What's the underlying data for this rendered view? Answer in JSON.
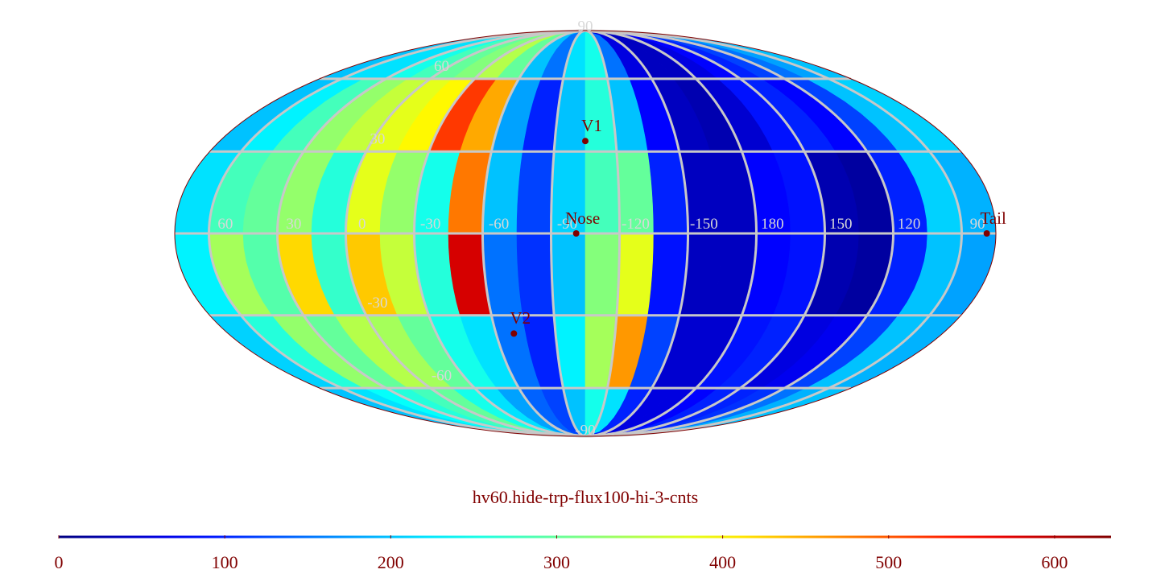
{
  "chart_data": {
    "type": "mollweide-heatmap",
    "title": "hv60.hide-trp-flux100-hi-3-cnts",
    "center_longitude": -105,
    "colormap": "jet",
    "grid_color": "#c8c8c8",
    "label_color": "#800000",
    "lon_lines": [
      60,
      30,
      0,
      -30,
      -60,
      -90,
      -120,
      -150,
      180,
      150,
      120,
      90
    ],
    "lat_lines": [
      60,
      30,
      -30,
      -60
    ],
    "poles": [
      90,
      -90
    ],
    "cells": {
      "lon_centers": [
        67.5,
        52.5,
        37.5,
        22.5,
        7.5,
        -7.5,
        -22.5,
        -37.5,
        -52.5,
        -67.5,
        -82.5,
        -97.5,
        -112.5,
        -127.5,
        -142.5,
        -157.5,
        -172.5,
        172.5,
        157.5,
        142.5,
        127.5,
        112.5,
        97.5,
        82.5
      ],
      "lat_centers": [
        75,
        45,
        15,
        -15,
        -45,
        -75
      ],
      "size": [
        15,
        30
      ],
      "values": [
        [
          200,
          220,
          220,
          250,
          280,
          300,
          320,
          350,
          300,
          200,
          150,
          220,
          250,
          150,
          60,
          40,
          40,
          60,
          80,
          100,
          120,
          150,
          180,
          200
        ],
        [
          200,
          230,
          280,
          330,
          360,
          380,
          400,
          520,
          450,
          180,
          100,
          200,
          260,
          200,
          80,
          40,
          30,
          50,
          90,
          100,
          80,
          120,
          200,
          210
        ],
        [
          220,
          280,
          300,
          330,
          260,
          380,
          330,
          250,
          480,
          200,
          120,
          210,
          280,
          300,
          100,
          40,
          40,
          80,
          90,
          30,
          20,
          100,
          210,
          190
        ],
        [
          230,
          340,
          290,
          420,
          270,
          430,
          360,
          260,
          580,
          150,
          110,
          200,
          320,
          380,
          90,
          40,
          40,
          80,
          90,
          30,
          20,
          100,
          200,
          180
        ],
        [
          210,
          260,
          330,
          300,
          350,
          340,
          300,
          250,
          220,
          150,
          100,
          230,
          340,
          460,
          120,
          50,
          50,
          90,
          100,
          60,
          70,
          120,
          200,
          190
        ],
        [
          200,
          220,
          240,
          260,
          280,
          300,
          250,
          220,
          180,
          140,
          120,
          200,
          250,
          220,
          100,
          60,
          60,
          80,
          100,
          100,
          110,
          150,
          190,
          200
        ]
      ]
    },
    "points": [
      {
        "name": "V1",
        "lon": -105,
        "lat": 34
      },
      {
        "name": "Nose",
        "lon": -101,
        "lat": 0
      },
      {
        "name": "V2",
        "lon": -69,
        "lat": -37
      },
      {
        "name": "Tail",
        "lon": 79,
        "lat": 0
      }
    ],
    "colorbar": {
      "lim": [
        0,
        634
      ],
      "ticks": [
        0,
        100,
        200,
        300,
        400,
        500,
        600
      ]
    }
  }
}
